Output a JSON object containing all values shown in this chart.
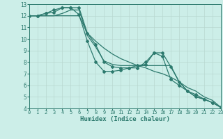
{
  "xlabel": "Humidex (Indice chaleur)",
  "xlim": [
    0,
    23
  ],
  "ylim": [
    4,
    13
  ],
  "xticks": [
    0,
    1,
    2,
    3,
    4,
    5,
    6,
    7,
    8,
    9,
    10,
    11,
    12,
    13,
    14,
    15,
    16,
    17,
    18,
    19,
    20,
    21,
    22,
    23
  ],
  "yticks": [
    4,
    5,
    6,
    7,
    8,
    9,
    10,
    11,
    12,
    13
  ],
  "bg_color": "#cceee8",
  "line_color": "#2d7a6e",
  "grid_color_major": "#b8d8d0",
  "grid_color_minor": "#d4ebe6",
  "series": [
    {
      "x": [
        0,
        1,
        2,
        3,
        4,
        5,
        6,
        7,
        8,
        9,
        10,
        11,
        12,
        13,
        14,
        15,
        16,
        17,
        18,
        19,
        20,
        21,
        22,
        23
      ],
      "y": [
        12,
        12,
        12.2,
        12.5,
        12.7,
        12.7,
        12.1,
        9.8,
        8.0,
        7.2,
        7.2,
        7.3,
        7.5,
        7.7,
        7.8,
        8.8,
        8.5,
        6.5,
        6.0,
        5.5,
        5.2,
        4.8,
        4.5,
        4.1
      ],
      "marker": true
    },
    {
      "x": [
        0,
        1,
        2,
        3,
        4,
        5,
        6,
        7,
        8,
        9,
        10,
        11,
        12,
        13,
        14,
        15,
        16,
        17,
        18,
        19,
        20,
        21,
        22,
        23
      ],
      "y": [
        12,
        12,
        12,
        12,
        12.2,
        12.5,
        12.5,
        10.3,
        9.3,
        8.1,
        7.8,
        7.7,
        7.7,
        7.7,
        7.7,
        7.7,
        7.7,
        7.7,
        6.3,
        5.5,
        5.0,
        4.8,
        4.5,
        4.1
      ],
      "marker": false
    },
    {
      "x": [
        0,
        1,
        2,
        3,
        4,
        5,
        6,
        7,
        8,
        9,
        10,
        11,
        12,
        13,
        14,
        15,
        16,
        17,
        18,
        19,
        20,
        21,
        22,
        23
      ],
      "y": [
        12,
        12,
        12,
        12,
        12,
        12,
        12,
        10.5,
        9.8,
        9.2,
        8.7,
        8.3,
        8.0,
        7.7,
        7.5,
        7.2,
        7.0,
        6.7,
        6.3,
        5.8,
        5.5,
        5.0,
        4.7,
        4.1
      ],
      "marker": false
    },
    {
      "x": [
        0,
        1,
        2,
        3,
        4,
        5,
        6,
        7,
        8,
        9,
        10,
        11,
        12,
        13,
        14,
        15,
        16,
        17,
        18,
        19,
        20,
        21,
        22,
        23
      ],
      "y": [
        12,
        12,
        12.2,
        12.3,
        12.7,
        12.7,
        12.7,
        10.5,
        9.5,
        8.0,
        7.6,
        7.5,
        7.5,
        7.5,
        8.0,
        8.8,
        8.8,
        7.6,
        6.3,
        5.5,
        5.0,
        4.8,
        4.5,
        4.1
      ],
      "marker": true
    }
  ]
}
